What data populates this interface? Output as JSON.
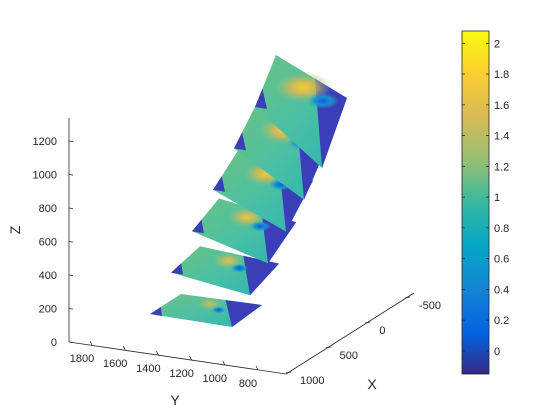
{
  "chart_data": {
    "type": "surface-slices-3d",
    "title": "",
    "axes": {
      "x": {
        "label": "X",
        "ticks": [
          -500,
          0,
          500,
          1000
        ],
        "range": [
          -650,
          1100
        ]
      },
      "y": {
        "label": "Y",
        "ticks": [
          1800,
          1600,
          1400,
          1200,
          1000,
          800
        ],
        "range": [
          650,
          1800
        ]
      },
      "z": {
        "label": "Z",
        "ticks": [
          0,
          200,
          400,
          600,
          800,
          1000,
          1200
        ],
        "range": [
          0,
          1350
        ]
      }
    },
    "colorbar": {
      "colormap": "parula",
      "range": [
        -0.15,
        2.08
      ],
      "ticks": [
        0,
        0.2,
        0.4,
        0.6,
        0.8,
        1,
        1.2,
        1.4,
        1.6,
        1.8,
        2
      ],
      "tick_labels": [
        "0",
        "0.2",
        "0.4",
        "0.6",
        "0.8",
        "1",
        "1.2",
        "1.4",
        "1.6",
        "1.8",
        "2"
      ]
    },
    "slices": [
      {
        "z": 200,
        "base_value": 1.1,
        "peak_value": 1.4,
        "low_value": -0.15
      },
      {
        "z": 450,
        "base_value": 1.1,
        "peak_value": 1.6,
        "low_value": -0.15
      },
      {
        "z": 700,
        "base_value": 1.1,
        "peak_value": 1.8,
        "low_value": -0.15
      },
      {
        "z": 950,
        "base_value": 1.1,
        "peak_value": 1.9,
        "low_value": -0.15
      },
      {
        "z": 1150,
        "base_value": 1.1,
        "peak_value": 2.0,
        "low_value": -0.15
      },
      {
        "z": 1300,
        "base_value": 1.1,
        "peak_value": 2.0,
        "low_value": -0.15
      }
    ]
  }
}
